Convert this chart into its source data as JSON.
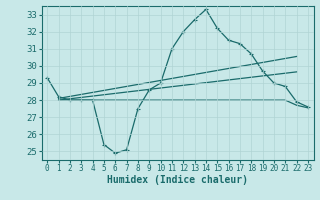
{
  "background_color": "#c8e8e8",
  "grid_color": "#b0d4d4",
  "line_color": "#1a6b6b",
  "xlabel": "Humidex (Indice chaleur)",
  "xlim": [
    -0.5,
    23.5
  ],
  "ylim": [
    24.5,
    33.5
  ],
  "yticks": [
    25,
    26,
    27,
    28,
    29,
    30,
    31,
    32,
    33
  ],
  "xticks": [
    0,
    1,
    2,
    3,
    4,
    5,
    6,
    7,
    8,
    9,
    10,
    11,
    12,
    13,
    14,
    15,
    16,
    17,
    18,
    19,
    20,
    21,
    22,
    23
  ],
  "series1": [
    29.3,
    28.2,
    28.0,
    28.0,
    28.0,
    25.4,
    24.9,
    25.1,
    27.5,
    28.6,
    29.0,
    31.0,
    32.0,
    32.7,
    33.3,
    32.2,
    31.5,
    31.3,
    30.7,
    29.7,
    29.0,
    28.8,
    27.9,
    27.6
  ],
  "line2_x": [
    1,
    22
  ],
  "line2_y": [
    28.1,
    30.55
  ],
  "line3_x": [
    1,
    22
  ],
  "line3_y": [
    28.0,
    29.65
  ],
  "series4_x": [
    1,
    21,
    22,
    23
  ],
  "series4_y": [
    28.0,
    28.0,
    27.7,
    27.55
  ]
}
